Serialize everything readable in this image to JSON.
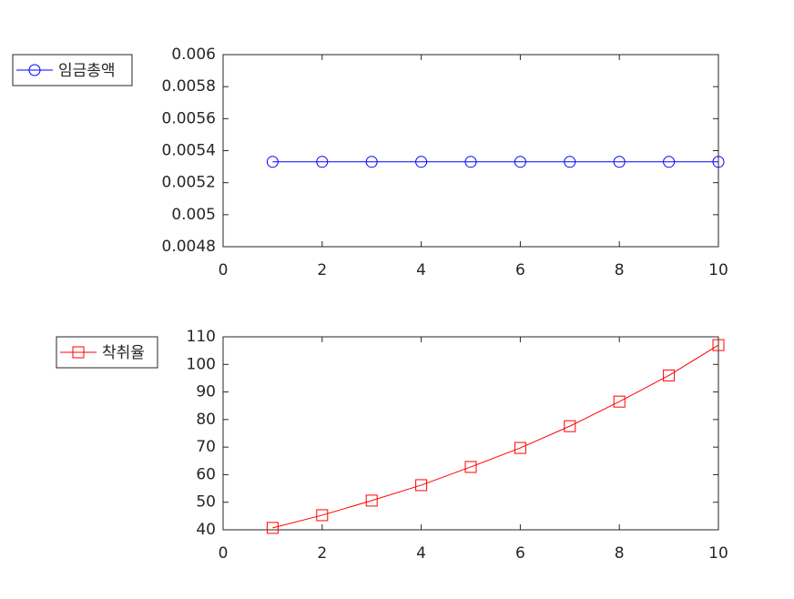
{
  "chart_data": [
    {
      "type": "line",
      "x": [
        1,
        2,
        3,
        4,
        5,
        6,
        7,
        8,
        9,
        10
      ],
      "series": [
        {
          "name": "임금총액",
          "color": "#0000ff",
          "marker": "circle",
          "values": [
            0.00533,
            0.00533,
            0.00533,
            0.00533,
            0.00533,
            0.00533,
            0.00533,
            0.00533,
            0.00533,
            0.00533
          ]
        }
      ],
      "xlim": [
        0,
        10
      ],
      "xticks": [
        0,
        2,
        4,
        6,
        8,
        10
      ],
      "ylim": [
        0.0048,
        0.006
      ],
      "yticks": [
        0.0048,
        0.005,
        0.0052,
        0.0054,
        0.0056,
        0.0058,
        0.006
      ],
      "legend": "outside-left"
    },
    {
      "type": "line",
      "x": [
        1,
        2,
        3,
        4,
        5,
        6,
        7,
        8,
        9,
        10
      ],
      "series": [
        {
          "name": "착취율",
          "color": "#ff0000",
          "marker": "square",
          "values": [
            40.7,
            45.3,
            50.6,
            56.2,
            62.8,
            69.7,
            77.6,
            86.5,
            96.0,
            107.0
          ]
        }
      ],
      "xlim": [
        0,
        10
      ],
      "xticks": [
        0,
        2,
        4,
        6,
        8,
        10
      ],
      "ylim": [
        40,
        110
      ],
      "yticks": [
        40,
        50,
        60,
        70,
        80,
        90,
        100,
        110
      ],
      "legend": "outside-left"
    }
  ]
}
